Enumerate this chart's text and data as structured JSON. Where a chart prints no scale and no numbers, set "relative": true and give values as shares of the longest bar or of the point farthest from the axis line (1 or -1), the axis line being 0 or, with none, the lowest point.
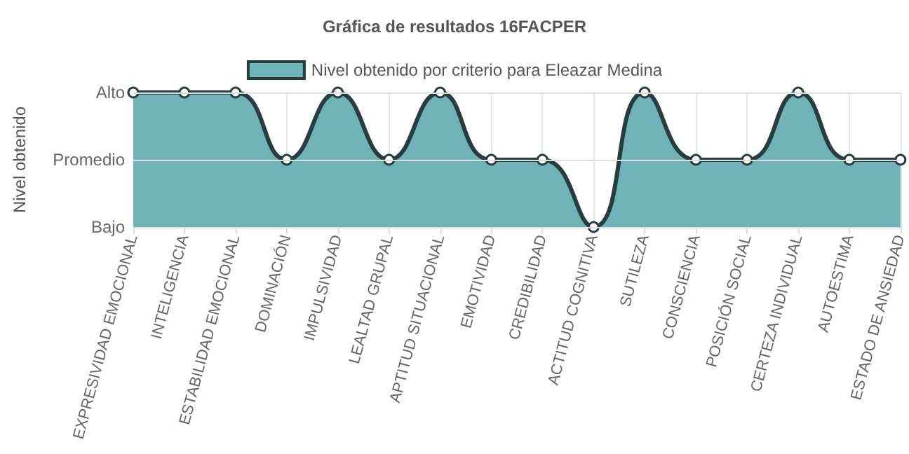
{
  "chart_data": {
    "type": "area",
    "title": "Gráfica de resultados 16FACPER",
    "ylabel": "Nivel obtenido",
    "categories": [
      "EXPRESIVIDAD EMOCIONAL",
      "INTELIGENCIA",
      "ESTABILIDAD EMOCIONAL",
      "DOMINACIÓN",
      "IMPULSIVIDAD",
      "LEALTAD GRUPAL",
      "APTITUD SITUACIONAL",
      "EMOTIVIDAD",
      "CREDIBILIDAD",
      "ACTITUD COGNITIVA",
      "SUTILEZA",
      "CONSCIENCIA",
      "POSICIÓN SOCIAL",
      "CERTEZA INDIVIDUAL",
      "AUTOESTIMA",
      "ESTADO DE ANSIEDAD"
    ],
    "series": [
      {
        "name": "Nivel obtenido por criterio para Eleazar Medina",
        "color": "#6fb2b8",
        "values": [
          1,
          1,
          1,
          0.5,
          1,
          0.5,
          1,
          0.5,
          0.5,
          0,
          1,
          0.5,
          0.5,
          1,
          0.5,
          0.5
        ]
      }
    ],
    "relative": true,
    "ref_lines": [
      {
        "axis": "y",
        "value": 0,
        "label": "Bajo",
        "color": "#dddddd"
      },
      {
        "axis": "y",
        "value": 0.5,
        "label": "Promedio",
        "color": "#dddddd"
      },
      {
        "axis": "y",
        "value": 1,
        "label": "Alto",
        "color": "#dddddd"
      }
    ],
    "grid": "x",
    "legend": "top",
    "marker": "circle",
    "line_style": "solid"
  }
}
